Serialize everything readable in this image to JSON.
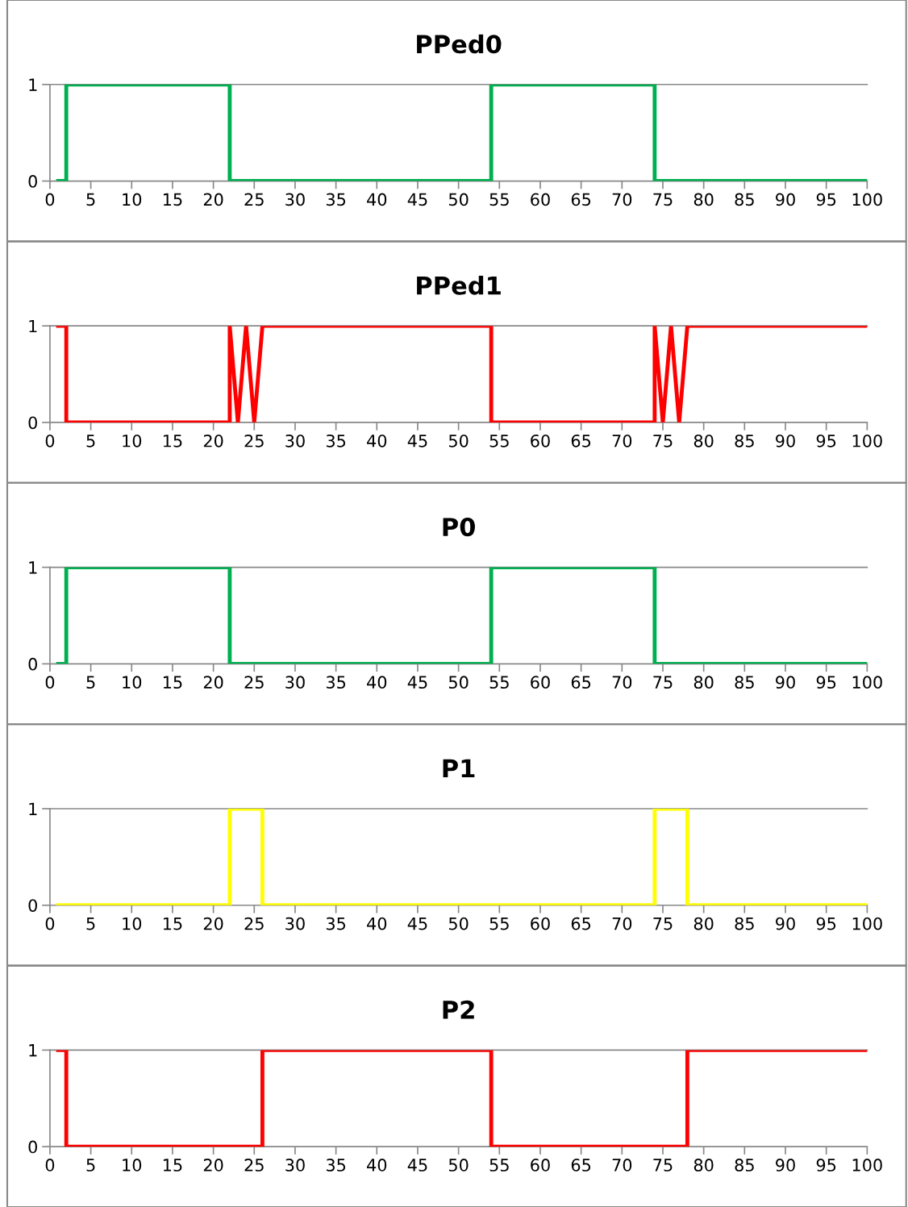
{
  "chart_data": [
    {
      "type": "line",
      "title": "PPed0",
      "xlim": [
        0,
        100
      ],
      "ylim": [
        0,
        1
      ],
      "xticks": [
        0,
        5,
        10,
        15,
        20,
        25,
        30,
        35,
        40,
        45,
        50,
        55,
        60,
        65,
        70,
        75,
        80,
        85,
        90,
        95,
        100
      ],
      "yticks": [
        0,
        1
      ],
      "legend": false,
      "series": [
        {
          "color": "#00b050",
          "x": [
            1,
            2,
            2,
            22,
            22,
            54,
            54,
            74,
            74,
            100
          ],
          "values": [
            0,
            0,
            1,
            1,
            0,
            0,
            1,
            1,
            0,
            0
          ]
        }
      ]
    },
    {
      "type": "line",
      "title": "PPed1",
      "xlim": [
        0,
        100
      ],
      "ylim": [
        0,
        1
      ],
      "xticks": [
        0,
        5,
        10,
        15,
        20,
        25,
        30,
        35,
        40,
        45,
        50,
        55,
        60,
        65,
        70,
        75,
        80,
        85,
        90,
        95,
        100
      ],
      "yticks": [
        0,
        1
      ],
      "legend": false,
      "series": [
        {
          "color": "#ff0000",
          "x": [
            1,
            2,
            2,
            22,
            22,
            23,
            24,
            25,
            26,
            54,
            54,
            74,
            74,
            75,
            76,
            77,
            78,
            100
          ],
          "values": [
            1,
            1,
            0,
            0,
            1,
            0,
            1,
            0,
            1,
            1,
            0,
            0,
            1,
            0,
            1,
            0,
            1,
            1
          ]
        }
      ]
    },
    {
      "type": "line",
      "title": "P0",
      "xlim": [
        0,
        100
      ],
      "ylim": [
        0,
        1
      ],
      "xticks": [
        0,
        5,
        10,
        15,
        20,
        25,
        30,
        35,
        40,
        45,
        50,
        55,
        60,
        65,
        70,
        75,
        80,
        85,
        90,
        95,
        100
      ],
      "yticks": [
        0,
        1
      ],
      "legend": false,
      "series": [
        {
          "color": "#00b050",
          "x": [
            1,
            2,
            2,
            22,
            22,
            54,
            54,
            74,
            74,
            100
          ],
          "values": [
            0,
            0,
            1,
            1,
            0,
            0,
            1,
            1,
            0,
            0
          ]
        }
      ]
    },
    {
      "type": "line",
      "title": "P1",
      "xlim": [
        0,
        100
      ],
      "ylim": [
        0,
        1
      ],
      "xticks": [
        0,
        5,
        10,
        15,
        20,
        25,
        30,
        35,
        40,
        45,
        50,
        55,
        60,
        65,
        70,
        75,
        80,
        85,
        90,
        95,
        100
      ],
      "yticks": [
        0,
        1
      ],
      "legend": false,
      "series": [
        {
          "color": "#ffff00",
          "x": [
            1,
            22,
            22,
            26,
            26,
            74,
            74,
            78,
            78,
            100
          ],
          "values": [
            0,
            0,
            1,
            1,
            0,
            0,
            1,
            1,
            0,
            0
          ]
        }
      ]
    },
    {
      "type": "line",
      "title": "P2",
      "xlim": [
        0,
        100
      ],
      "ylim": [
        0,
        1
      ],
      "xticks": [
        0,
        5,
        10,
        15,
        20,
        25,
        30,
        35,
        40,
        45,
        50,
        55,
        60,
        65,
        70,
        75,
        80,
        85,
        90,
        95,
        100
      ],
      "yticks": [
        0,
        1
      ],
      "legend": false,
      "series": [
        {
          "color": "#ff0000",
          "x": [
            1,
            2,
            2,
            26,
            26,
            54,
            54,
            78,
            78,
            100
          ],
          "values": [
            1,
            1,
            0,
            0,
            1,
            1,
            0,
            0,
            1,
            1
          ]
        }
      ]
    }
  ]
}
